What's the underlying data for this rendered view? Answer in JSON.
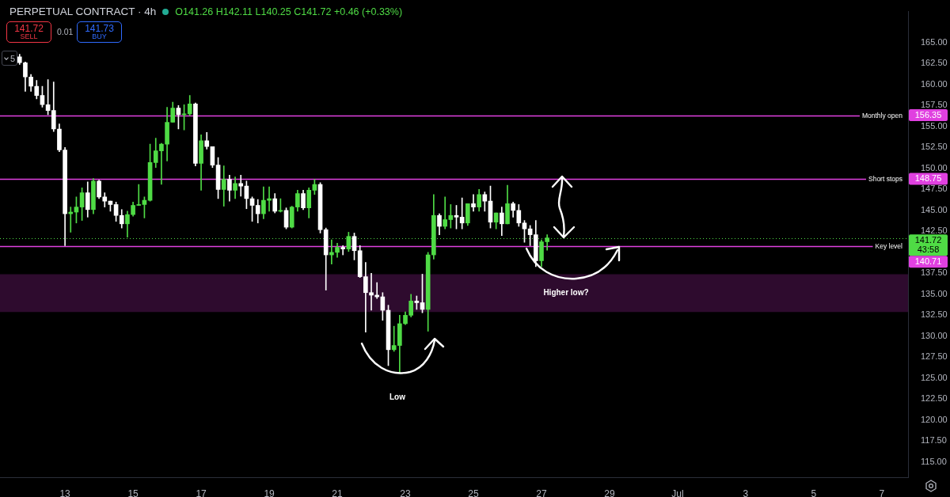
{
  "chart_data": {
    "type": "candlestick",
    "title": "PERPETUAL CONTRACT · 4h",
    "subtitle": "O141.26 H142.11 L140.25 C141.72 +0.46 (+0.33%)",
    "x": [
      "--06-11T16:00",
      "--06-11T20:00",
      "--06-12T00:00",
      "--06-12T04:00",
      "--06-12T08:00",
      "--06-12T12:00",
      "--06-12T16:00",
      "--06-12T20:00",
      "--06-13T00:00",
      "--06-13T04:00",
      "--06-13T08:00",
      "--06-13T12:00",
      "--06-13T16:00",
      "--06-13T20:00",
      "--06-14T00:00",
      "--06-14T04:00",
      "--06-14T08:00",
      "--06-14T12:00",
      "--06-14T16:00",
      "--06-14T20:00",
      "--06-15T00:00",
      "--06-15T04:00",
      "--06-15T08:00",
      "--06-15T12:00",
      "--06-15T16:00",
      "--06-15T20:00",
      "--06-16T00:00",
      "--06-16T04:00",
      "--06-16T08:00",
      "--06-16T12:00",
      "--06-16T16:00",
      "--06-16T20:00",
      "--06-17T00:00",
      "--06-17T04:00",
      "--06-17T08:00",
      "--06-17T12:00",
      "--06-17T16:00",
      "--06-17T20:00",
      "--06-18T00:00",
      "--06-18T04:00",
      "--06-18T08:00",
      "--06-18T12:00",
      "--06-18T16:00",
      "--06-18T20:00",
      "--06-19T00:00",
      "--06-19T04:00",
      "--06-19T08:00",
      "--06-19T12:00",
      "--06-19T16:00",
      "--06-19T20:00",
      "--06-20T00:00",
      "--06-20T04:00",
      "--06-20T08:00",
      "--06-20T12:00",
      "--06-20T16:00",
      "--06-20T20:00",
      "--06-21T00:00",
      "--06-21T04:00",
      "--06-21T08:00",
      "--06-21T12:00",
      "--06-21T16:00",
      "--06-21T20:00",
      "--06-22T00:00",
      "--06-22T04:00",
      "--06-22T08:00",
      "--06-22T12:00",
      "--06-22T16:00",
      "--06-22T20:00",
      "--06-23T00:00",
      "--06-23T04:00",
      "--06-23T08:00",
      "--06-23T12:00",
      "--06-23T16:00",
      "--06-23T20:00",
      "--06-24T00:00",
      "--06-24T04:00",
      "--06-24T08:00",
      "--06-24T12:00",
      "--06-24T16:00",
      "--06-24T20:00",
      "--06-25T00:00",
      "--06-25T04:00",
      "--06-25T08:00",
      "--06-25T12:00",
      "--06-25T16:00",
      "--06-25T20:00",
      "--06-26T00:00",
      "--06-26T04:00",
      "--06-26T08:00",
      "--06-26T12:00",
      "--06-26T16:00",
      "--06-26T20:00",
      "--06-27T00:00",
      "--06-27T04:00"
    ],
    "ohlc": [
      [
        163.3,
        163.6,
        162.4,
        162.6
      ],
      [
        162.6,
        162.7,
        159.2,
        160.9
      ],
      [
        160.9,
        161.2,
        159.2,
        159.8
      ],
      [
        159.8,
        160.5,
        158.3,
        158.7
      ],
      [
        158.7,
        159.8,
        157.3,
        157.6
      ],
      [
        157.6,
        160.6,
        156.4,
        156.9
      ],
      [
        156.9,
        160.3,
        154.4,
        154.7
      ],
      [
        154.7,
        155.3,
        152.0,
        152.2
      ],
      [
        152.2,
        152.5,
        140.8,
        144.6
      ],
      [
        144.6,
        145.4,
        142.4,
        144.8
      ],
      [
        144.8,
        146.6,
        143.5,
        145.4
      ],
      [
        145.4,
        147.7,
        143.8,
        147.1
      ],
      [
        147.1,
        148.4,
        144.2,
        145.1
      ],
      [
        145.1,
        148.8,
        144.6,
        148.5
      ],
      [
        148.5,
        148.6,
        146.4,
        146.6
      ],
      [
        146.6,
        147.1,
        145.4,
        146.1
      ],
      [
        146.1,
        146.1,
        144.9,
        145.7
      ],
      [
        145.7,
        146.0,
        143.7,
        144.4
      ],
      [
        144.4,
        145.1,
        142.9,
        143.4
      ],
      [
        143.4,
        144.9,
        141.8,
        144.5
      ],
      [
        144.5,
        146.0,
        144.3,
        145.6
      ],
      [
        145.6,
        148.1,
        145.6,
        145.7
      ],
      [
        145.7,
        146.6,
        144.1,
        146.2
      ],
      [
        146.2,
        152.9,
        146.1,
        150.7
      ],
      [
        150.7,
        153.6,
        150.1,
        152.1
      ],
      [
        152.1,
        153.0,
        148.1,
        152.9
      ],
      [
        152.9,
        157.3,
        150.9,
        155.5
      ],
      [
        155.5,
        157.9,
        155.5,
        157.2
      ],
      [
        157.2,
        157.5,
        154.7,
        156.4
      ],
      [
        156.4,
        157.6,
        154.6,
        156.5
      ],
      [
        156.5,
        158.7,
        156.3,
        157.7
      ],
      [
        157.7,
        157.8,
        150.3,
        150.6
      ],
      [
        150.6,
        154.0,
        147.4,
        153.3
      ],
      [
        153.3,
        154.3,
        152.3,
        152.6
      ],
      [
        152.6,
        152.6,
        150.1,
        150.4
      ],
      [
        150.4,
        151.3,
        146.4,
        147.5
      ],
      [
        147.5,
        150.3,
        145.5,
        148.7
      ],
      [
        148.7,
        149.2,
        146.1,
        147.4
      ],
      [
        147.4,
        149.0,
        146.4,
        148.2
      ],
      [
        148.2,
        149.2,
        146.7,
        147.9
      ],
      [
        147.9,
        148.5,
        145.2,
        146.4
      ],
      [
        146.4,
        146.6,
        143.7,
        145.6
      ],
      [
        145.6,
        146.3,
        143.5,
        144.6
      ],
      [
        144.6,
        147.8,
        144.0,
        146.2
      ],
      [
        146.2,
        147.8,
        144.9,
        146.4
      ],
      [
        146.4,
        147.0,
        144.7,
        144.9
      ],
      [
        144.9,
        146.4,
        144.8,
        145.0
      ],
      [
        145.0,
        145.3,
        142.8,
        143.0
      ],
      [
        143.0,
        145.5,
        142.9,
        145.4
      ],
      [
        145.4,
        147.4,
        144.9,
        147.0
      ],
      [
        147.0,
        147.4,
        145.1,
        145.3
      ],
      [
        145.3,
        147.7,
        144.1,
        147.4
      ],
      [
        147.4,
        148.7,
        146.9,
        148.1
      ],
      [
        148.1,
        148.3,
        142.3,
        142.7
      ],
      [
        142.7,
        142.9,
        135.5,
        139.7
      ],
      [
        139.7,
        141.5,
        138.6,
        140.0
      ],
      [
        140.0,
        141.1,
        139.4,
        140.6
      ],
      [
        140.6,
        140.8,
        139.7,
        140.4
      ],
      [
        140.4,
        142.4,
        140.1,
        141.9
      ],
      [
        141.9,
        142.3,
        139.1,
        140.2
      ],
      [
        140.2,
        140.8,
        137.0,
        137.1
      ],
      [
        137.1,
        138.8,
        130.5,
        135.2
      ],
      [
        135.2,
        137.5,
        133.1,
        134.9
      ],
      [
        134.9,
        136.4,
        134.5,
        134.7
      ],
      [
        134.7,
        135.2,
        131.9,
        133.1
      ],
      [
        133.1,
        133.7,
        126.5,
        128.4
      ],
      [
        128.4,
        131.2,
        128.2,
        128.9
      ],
      [
        128.9,
        132.5,
        125.7,
        131.5
      ],
      [
        131.5,
        132.9,
        131.4,
        132.5
      ],
      [
        132.5,
        135.0,
        132.3,
        134.2
      ],
      [
        134.2,
        134.8,
        133.2,
        134.0
      ],
      [
        134.0,
        137.4,
        132.8,
        133.2
      ],
      [
        133.2,
        140.0,
        130.6,
        139.7
      ],
      [
        139.7,
        146.9,
        139.2,
        144.4
      ],
      [
        144.4,
        144.6,
        142.1,
        143.1
      ],
      [
        143.1,
        146.6,
        142.8,
        143.9
      ],
      [
        143.9,
        145.7,
        142.9,
        144.4
      ],
      [
        144.4,
        145.6,
        142.8,
        144.2
      ],
      [
        144.2,
        146.5,
        142.8,
        143.5
      ],
      [
        143.5,
        145.8,
        143.2,
        145.8
      ],
      [
        145.8,
        146.9,
        144.9,
        145.4
      ],
      [
        145.4,
        147.5,
        144.9,
        146.9
      ],
      [
        146.9,
        147.2,
        144.9,
        146.1
      ],
      [
        146.1,
        147.9,
        142.9,
        143.6
      ],
      [
        143.6,
        144.7,
        142.8,
        144.7
      ],
      [
        144.7,
        145.4,
        142.0,
        143.4
      ],
      [
        143.4,
        148.0,
        143.4,
        145.8
      ],
      [
        145.8,
        146.0,
        144.2,
        145.0
      ],
      [
        145.0,
        145.7,
        143.1,
        143.5
      ],
      [
        143.5,
        143.8,
        141.2,
        142.8
      ],
      [
        142.8,
        143.2,
        140.8,
        142.1
      ],
      [
        142.1,
        143.8,
        138.3,
        139.0
      ],
      [
        139.0,
        141.5,
        138.3,
        141.26
      ],
      [
        141.26,
        142.11,
        140.25,
        141.72
      ]
    ],
    "colors": [
      "#ffffff",
      "#ffffff",
      "#ffffff",
      "#ffffff",
      "#ffffff",
      "#ffffff",
      "#ffffff",
      "#ffffff",
      "#ffffff",
      "#4fdb45",
      "#4fdb45",
      "#4fdb45",
      "#ffffff",
      "#4fdb45",
      "#ffffff",
      "#ffffff",
      "#ffffff",
      "#ffffff",
      "#ffffff",
      "#4fdb45",
      "#4fdb45",
      "#4fdb45",
      "#4fdb45",
      "#4fdb45",
      "#4fdb45",
      "#4fdb45",
      "#4fdb45",
      "#4fdb45",
      "#ffffff",
      "#4fdb45",
      "#4fdb45",
      "#ffffff",
      "#4fdb45",
      "#ffffff",
      "#ffffff",
      "#ffffff",
      "#4fdb45",
      "#ffffff",
      "#4fdb45",
      "#ffffff",
      "#ffffff",
      "#ffffff",
      "#ffffff",
      "#4fdb45",
      "#4fdb45",
      "#ffffff",
      "#4fdb45",
      "#ffffff",
      "#4fdb45",
      "#4fdb45",
      "#ffffff",
      "#4fdb45",
      "#4fdb45",
      "#ffffff",
      "#ffffff",
      "#4fdb45",
      "#4fdb45",
      "#ffffff",
      "#4fdb45",
      "#ffffff",
      "#ffffff",
      "#ffffff",
      "#ffffff",
      "#ffffff",
      "#ffffff",
      "#ffffff",
      "#4fdb45",
      "#4fdb45",
      "#4fdb45",
      "#4fdb45",
      "#ffffff",
      "#ffffff",
      "#4fdb45",
      "#4fdb45",
      "#ffffff",
      "#4fdb45",
      "#4fdb45",
      "#ffffff",
      "#ffffff",
      "#4fdb45",
      "#ffffff",
      "#4fdb45",
      "#ffffff",
      "#ffffff",
      "#4fdb45",
      "#ffffff",
      "#4fdb45",
      "#ffffff",
      "#ffffff",
      "#ffffff",
      "#ffffff",
      "#ffffff",
      "#4fdb45",
      "#4fdb45"
    ],
    "xlim": [
      "--06-11T02:10",
      "--07-07T18:29"
    ],
    "xticks": [
      {
        "value": "--06-13",
        "label": "13"
      },
      {
        "value": "--06-15",
        "label": "15"
      },
      {
        "value": "--06-17",
        "label": "17"
      },
      {
        "value": "--06-19",
        "label": "19"
      },
      {
        "value": "--06-21",
        "label": "21"
      },
      {
        "value": "--06-23",
        "label": "23"
      },
      {
        "value": "--06-25",
        "label": "25"
      },
      {
        "value": "--06-27",
        "label": "27"
      },
      {
        "value": "--06-29",
        "label": "29"
      },
      {
        "value": "--07-01",
        "label": "Jul"
      },
      {
        "value": "--07-03",
        "label": "3"
      },
      {
        "value": "--07-05",
        "label": "5"
      },
      {
        "value": "--07-07",
        "label": "7"
      }
    ],
    "ylim": [
      113.2,
      168.7
    ],
    "yticks": [
      {
        "value": 115,
        "label": "115.00"
      },
      {
        "value": 117.5,
        "label": "117.50"
      },
      {
        "value": 120,
        "label": "120.00"
      },
      {
        "value": 122.5,
        "label": "122.50"
      },
      {
        "value": 125,
        "label": "125.00"
      },
      {
        "value": 127.5,
        "label": "127.50"
      },
      {
        "value": 130,
        "label": "130.00"
      },
      {
        "value": 132.5,
        "label": "132.50"
      },
      {
        "value": 135,
        "label": "135.00"
      },
      {
        "value": 137.5,
        "label": "137.50"
      },
      {
        "value": 142.5,
        "label": "142.50"
      },
      {
        "value": 145,
        "label": "145.00"
      },
      {
        "value": 147.5,
        "label": "147.50"
      },
      {
        "value": 150,
        "label": "150.00"
      },
      {
        "value": 152.5,
        "label": "152.50"
      },
      {
        "value": 155,
        "label": "155.00"
      },
      {
        "value": 157.5,
        "label": "157.50"
      },
      {
        "value": 160,
        "label": "160.00"
      },
      {
        "value": 162.5,
        "label": "162.50"
      },
      {
        "value": 165,
        "label": "165.00"
      }
    ],
    "ref_lines": [
      {
        "axis": "y",
        "value": 156.35,
        "label": "Monthly open",
        "color": "#e040e0"
      },
      {
        "axis": "y",
        "value": 148.75,
        "label": "Short stops",
        "color": "#e040e0"
      },
      {
        "axis": "y",
        "value": 140.71,
        "label": "Key level",
        "color": "#e040e0"
      },
      {
        "axis": "y",
        "value": 141.72,
        "color": "#4fdb45",
        "line_style": "dotted"
      }
    ],
    "bands": [
      {
        "axis": "y",
        "from": 132.9,
        "to": 137.4,
        "color": "#2e0b2e"
      }
    ],
    "annotations": [
      "141.72",
      "SELL",
      "0.01",
      "141.73",
      "BUY",
      "5",
      "43:58",
      "Low",
      "Higher low?",
      "156.35",
      "148.75",
      "140.71",
      "141.72"
    ]
  }
}
